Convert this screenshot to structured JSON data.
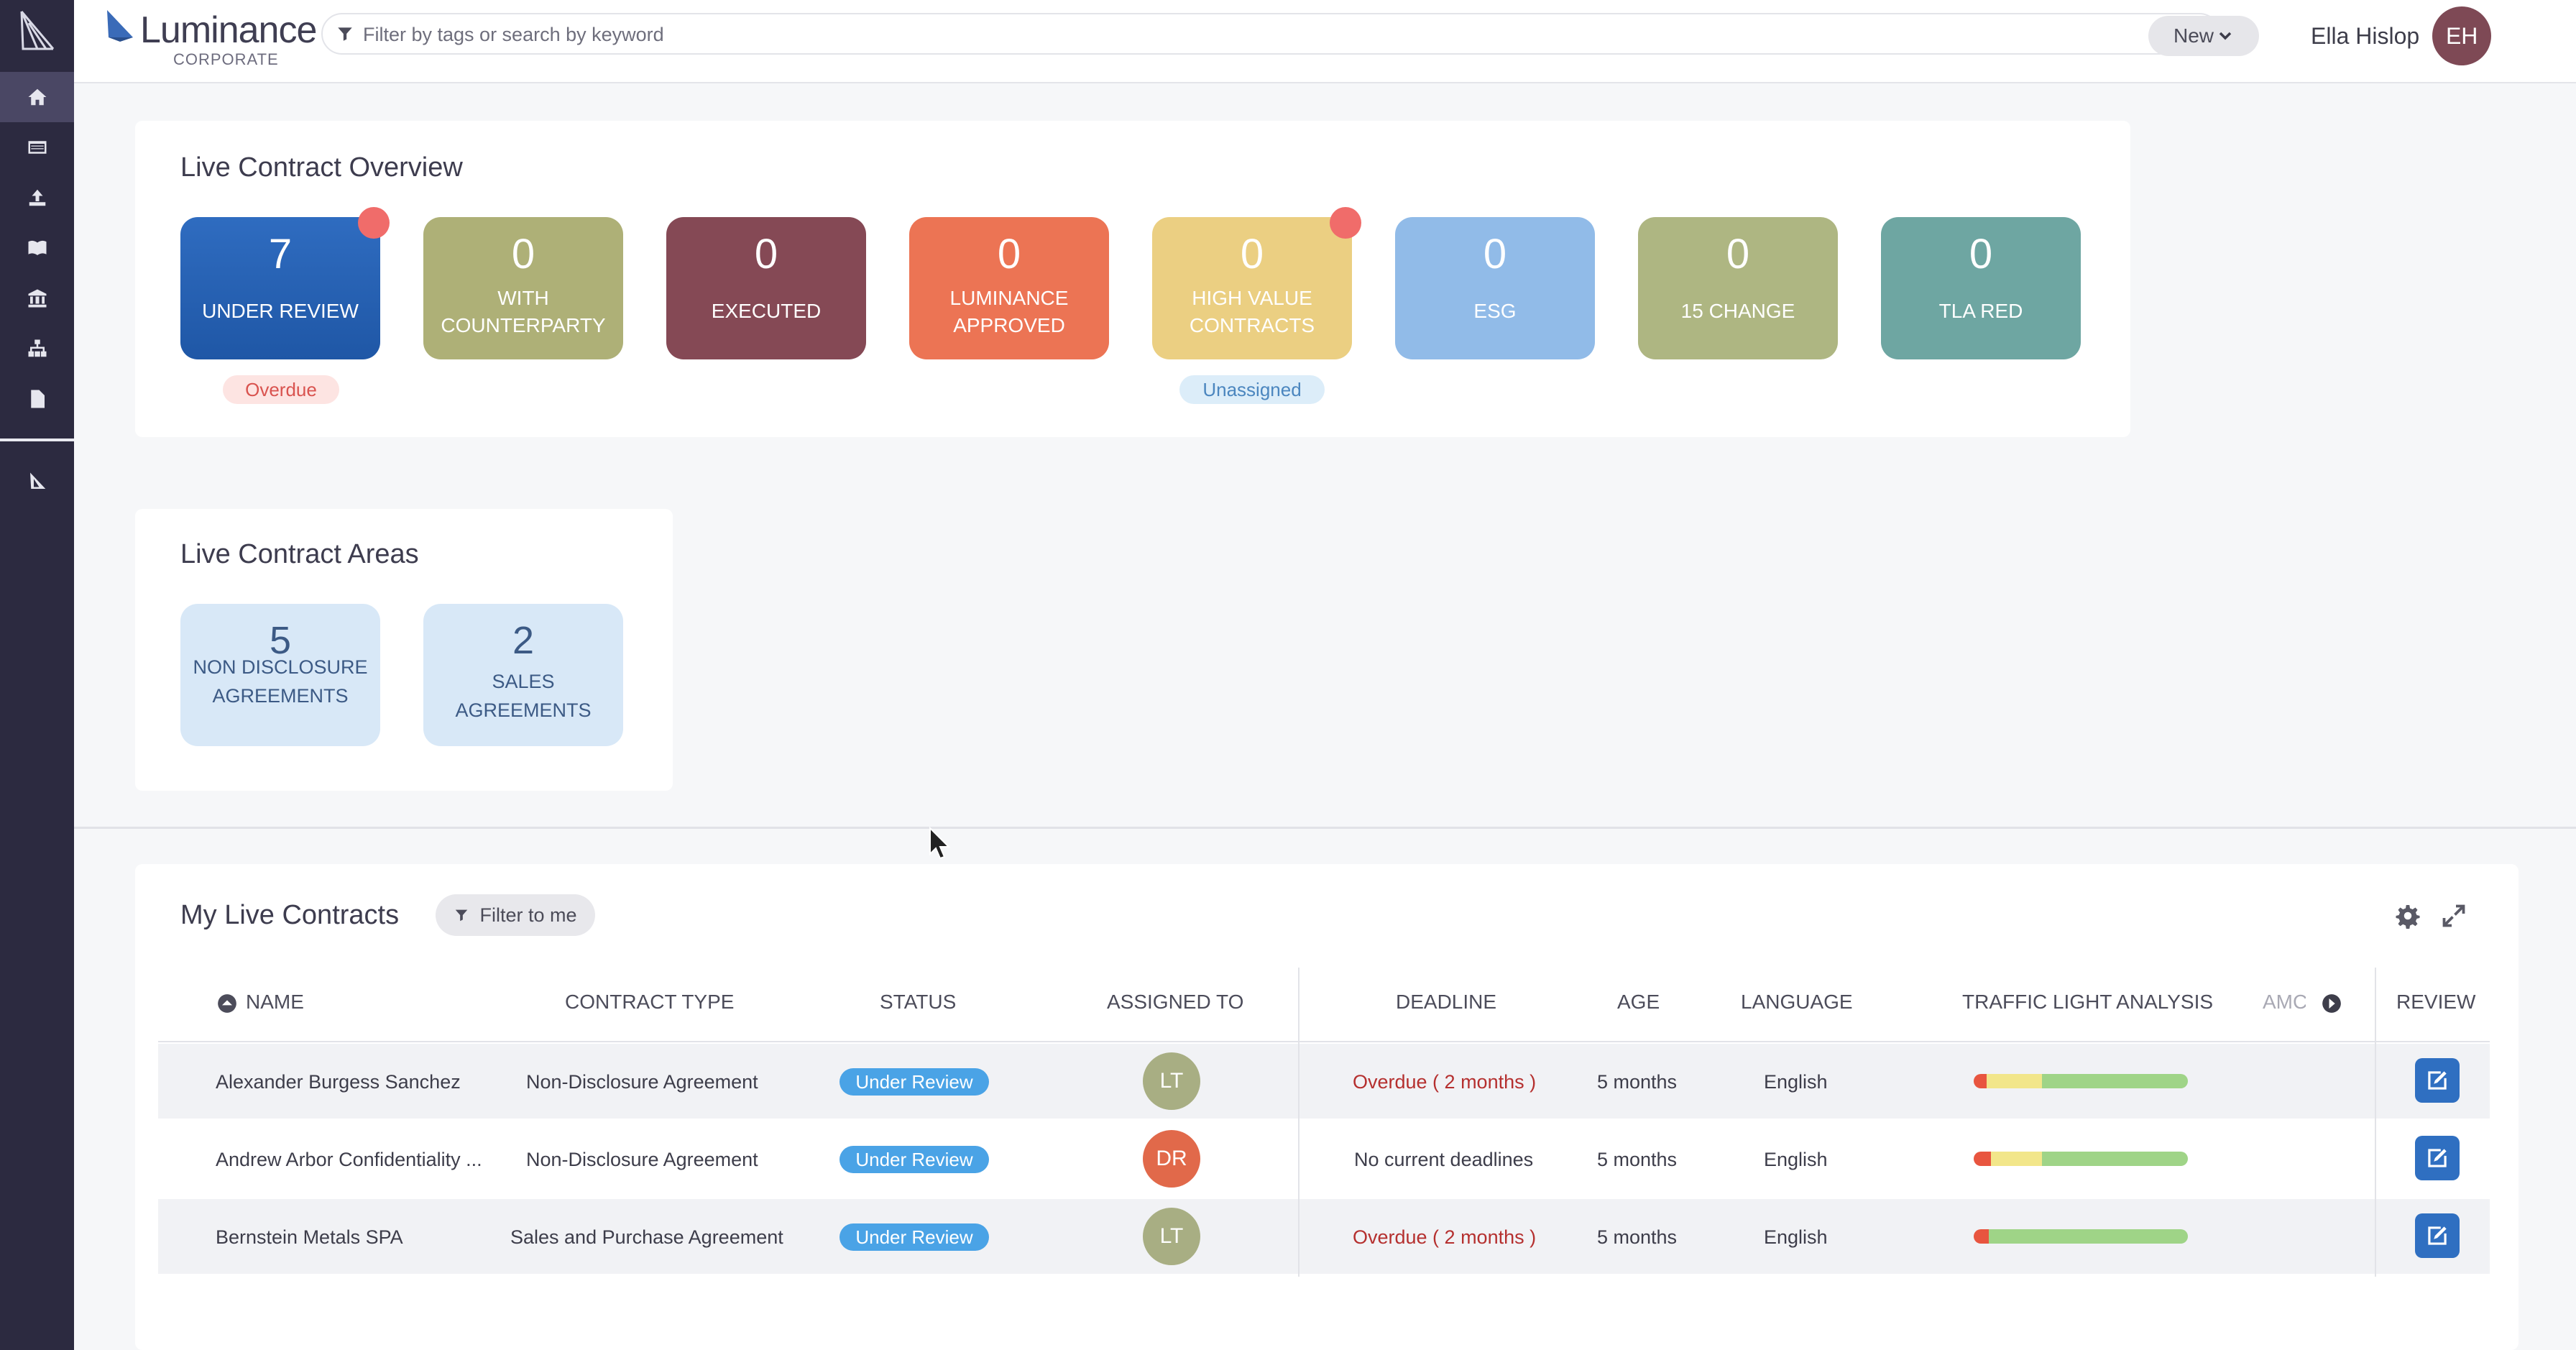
{
  "app": {
    "brand_name": "Luminance",
    "brand_sub": "CORPORATE",
    "search_placeholder": "Filter by tags or search by keyword",
    "new_label": "New",
    "user_name": "Ella Hislop",
    "user_initials": "EH"
  },
  "sidebar": {
    "items": [
      {
        "icon": "home-icon",
        "active": true
      },
      {
        "icon": "dashboard-icon"
      },
      {
        "icon": "upload-icon"
      },
      {
        "icon": "library-icon"
      },
      {
        "icon": "bank-icon"
      },
      {
        "icon": "hierarchy-icon"
      },
      {
        "icon": "document-icon"
      },
      {
        "icon": "luminance-logo-icon"
      }
    ]
  },
  "overview": {
    "title": "Live Contract Overview",
    "tiles": [
      {
        "value": "7",
        "label": "UNDER REVIEW",
        "color": "#2a62b4",
        "dot": true,
        "tag": "Overdue"
      },
      {
        "value": "0",
        "label": "WITH COUNTERPARTY",
        "color": "#aeb077"
      },
      {
        "value": "0",
        "label": "EXECUTED",
        "color": "#854955"
      },
      {
        "value": "0",
        "label": "LUMINANCE APPROVED",
        "color": "#ec7454"
      },
      {
        "value": "0",
        "label": "HIGH VALUE CONTRACTS",
        "color": "#ebcf82",
        "dot": true,
        "tag": "Unassigned"
      },
      {
        "value": "0",
        "label": "ESG",
        "color": "#91bbe8"
      },
      {
        "value": "0",
        "label": "15 CHANGE",
        "color": "#aeb682"
      },
      {
        "value": "0",
        "label": "TLA RED",
        "color": "#6ea6a2"
      }
    ]
  },
  "areas": {
    "title": "Live Contract Areas",
    "tiles": [
      {
        "value": "5",
        "label": "NON DISCLOSURE AGREEMENTS"
      },
      {
        "value": "2",
        "label": "SALES AGREEMENTS"
      }
    ]
  },
  "contracts": {
    "title": "My Live Contracts",
    "filter_label": "Filter to me",
    "columns": [
      "NAME",
      "CONTRACT TYPE",
      "STATUS",
      "ASSIGNED TO",
      "DEADLINE",
      "AGE",
      "LANGUAGE",
      "TRAFFIC LIGHT ANALYSIS",
      "AMC",
      "REVIEW"
    ],
    "rows": [
      {
        "name": "Alexander Burgess Sanchez",
        "type": "Non-Disclosure Agreement",
        "status": "Under Review",
        "assignee": "LT",
        "assignee_color": "#a8ae83",
        "deadline": "Overdue ( 2 months )",
        "overdue": true,
        "age": "5 months",
        "language": "English",
        "tla": {
          "red": 0.06,
          "yellow": 0.26,
          "green": 0.68
        }
      },
      {
        "name": "Andrew Arbor Confidentiality ...",
        "type": "Non-Disclosure Agreement",
        "status": "Under Review",
        "assignee": "DR",
        "assignee_color": "#e1694a",
        "deadline": "No current deadlines",
        "overdue": false,
        "age": "5 months",
        "language": "English",
        "tla": {
          "red": 0.08,
          "yellow": 0.24,
          "green": 0.68
        }
      },
      {
        "name": "Bernstein Metals SPA",
        "type": "Sales and Purchase Agreement",
        "status": "Under Review",
        "assignee": "LT",
        "assignee_color": "#a8ae83",
        "deadline": "Overdue ( 2 months )",
        "overdue": true,
        "age": "5 months",
        "language": "English",
        "tla": {
          "red": 0.07,
          "yellow": 0.0,
          "green": 0.93
        }
      }
    ]
  },
  "colors": {
    "status_pill": "#4aa3e6",
    "tla_red": "#e8553f",
    "tla_yellow": "#f2e68a",
    "tla_green": "#9fd487",
    "review_button": "#2f6fc1"
  }
}
